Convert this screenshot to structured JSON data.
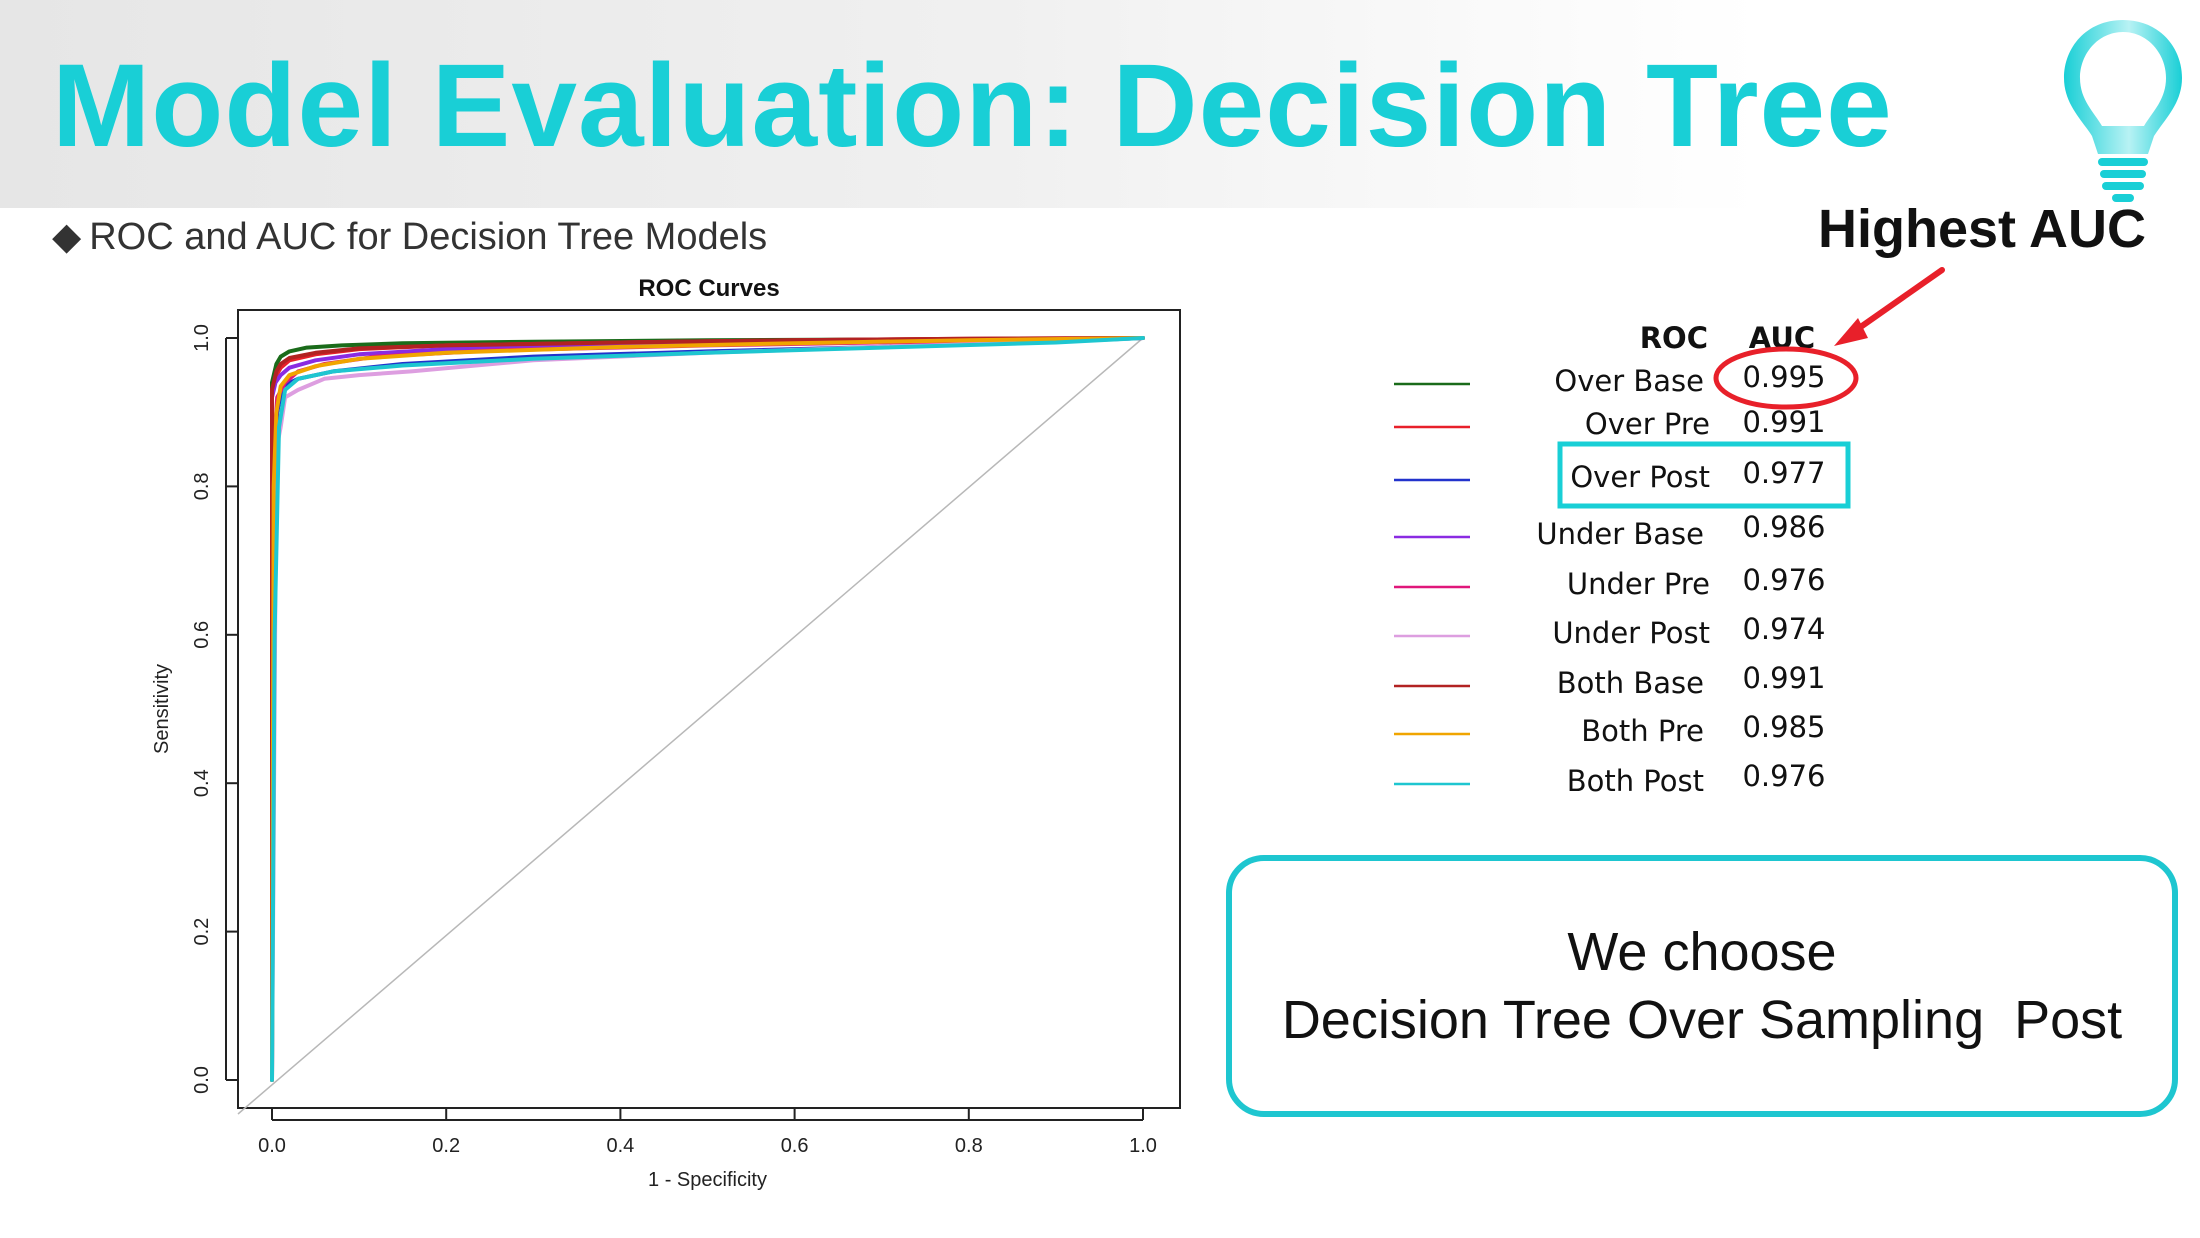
{
  "slide": {
    "title": "Model Evaluation: Decision Tree",
    "subtitle_bullet": "◆",
    "subtitle": "ROC and AUC for Decision Tree Models",
    "highlight_label": "Highest AUC",
    "conclusion_line1": "We choose",
    "conclusion_line2": "Decision Tree Over Sampling  Post",
    "accent_color": "#19cfd6",
    "highlight_color": "#e8202a",
    "icon": "lightbulb-icon"
  },
  "legend": {
    "header_roc": "ROC",
    "header_auc": "AUC"
  },
  "chart_data": {
    "type": "line",
    "title": "ROC Curves",
    "xlabel": "1 - Specificity",
    "ylabel": "Sensitivity",
    "xlim": [
      0,
      1
    ],
    "ylim": [
      0,
      1
    ],
    "x_ticks": [
      "0.0",
      "0.2",
      "0.4",
      "0.6",
      "0.8",
      "1.0"
    ],
    "y_ticks": [
      "0.0",
      "0.2",
      "0.4",
      "0.6",
      "0.8",
      "1.0"
    ],
    "grid": false,
    "legend_position": "right",
    "series": [
      {
        "name": "Over Base",
        "auc": "0.995",
        "color": "#1a6b1a",
        "x": [
          0,
          0,
          0.005,
          0.01,
          0.02,
          0.04,
          0.08,
          0.15,
          0.3,
          0.5,
          0.7,
          0.9,
          1
        ],
        "y": [
          0,
          0.94,
          0.965,
          0.975,
          0.982,
          0.987,
          0.99,
          0.993,
          0.995,
          0.997,
          0.998,
          0.999,
          1
        ]
      },
      {
        "name": "Over Pre",
        "auc": "0.991",
        "color": "#e8202a",
        "x": [
          0,
          0,
          0.005,
          0.01,
          0.02,
          0.05,
          0.1,
          0.2,
          0.4,
          0.6,
          0.8,
          1
        ],
        "y": [
          0,
          0.93,
          0.95,
          0.96,
          0.97,
          0.978,
          0.985,
          0.99,
          0.994,
          0.997,
          0.999,
          1
        ]
      },
      {
        "name": "Over Post",
        "auc": "0.977",
        "color": "#2233cc",
        "x": [
          0,
          0.002,
          0.006,
          0.012,
          0.03,
          0.07,
          0.15,
          0.3,
          0.5,
          0.7,
          0.9,
          1
        ],
        "y": [
          0,
          0.68,
          0.9,
          0.935,
          0.945,
          0.955,
          0.965,
          0.975,
          0.982,
          0.988,
          0.995,
          1
        ]
      },
      {
        "name": "Under Base",
        "auc": "0.986",
        "color": "#8a2be2",
        "x": [
          0,
          0,
          0.004,
          0.01,
          0.02,
          0.05,
          0.1,
          0.2,
          0.4,
          0.6,
          0.8,
          1
        ],
        "y": [
          0,
          0.92,
          0.94,
          0.95,
          0.96,
          0.97,
          0.978,
          0.985,
          0.99,
          0.994,
          0.997,
          1
        ]
      },
      {
        "name": "Under Pre",
        "auc": "0.976",
        "color": "#e0177a",
        "x": [
          0,
          0.002,
          0.006,
          0.015,
          0.03,
          0.06,
          0.12,
          0.25,
          0.5,
          0.75,
          1
        ],
        "y": [
          0,
          0.85,
          0.92,
          0.94,
          0.955,
          0.965,
          0.975,
          0.983,
          0.99,
          0.995,
          1
        ]
      },
      {
        "name": "Under Post",
        "auc": "0.974",
        "color": "#dd9ee0",
        "x": [
          0,
          0.005,
          0.01,
          0.015,
          0.03,
          0.06,
          0.1,
          0.16,
          0.3,
          0.5,
          0.7,
          0.9,
          1
        ],
        "y": [
          0,
          0.85,
          0.88,
          0.92,
          0.93,
          0.945,
          0.95,
          0.955,
          0.97,
          0.98,
          0.988,
          0.995,
          1
        ]
      },
      {
        "name": "Both Base",
        "auc": "0.991",
        "color": "#b22222",
        "x": [
          0,
          0,
          0.005,
          0.01,
          0.02,
          0.05,
          0.1,
          0.2,
          0.4,
          0.6,
          0.8,
          1
        ],
        "y": [
          0,
          0.93,
          0.955,
          0.965,
          0.973,
          0.98,
          0.986,
          0.99,
          0.994,
          0.997,
          0.999,
          1
        ]
      },
      {
        "name": "Both Pre",
        "auc": "0.985",
        "color": "#f0a500",
        "x": [
          0,
          0.002,
          0.005,
          0.01,
          0.02,
          0.05,
          0.1,
          0.2,
          0.4,
          0.6,
          0.8,
          1
        ],
        "y": [
          0,
          0.8,
          0.9,
          0.935,
          0.95,
          0.962,
          0.972,
          0.98,
          0.988,
          0.993,
          0.997,
          1
        ]
      },
      {
        "name": "Both Post",
        "auc": "0.976",
        "color": "#1ec6d0",
        "x": [
          0,
          0.003,
          0.008,
          0.015,
          0.03,
          0.07,
          0.15,
          0.3,
          0.5,
          0.7,
          0.9,
          1
        ],
        "y": [
          0,
          0.6,
          0.88,
          0.93,
          0.945,
          0.955,
          0.963,
          0.972,
          0.98,
          0.987,
          0.994,
          1
        ]
      }
    ]
  }
}
